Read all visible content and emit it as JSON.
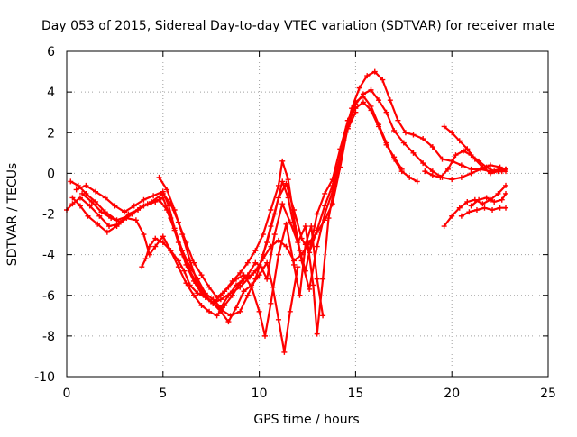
{
  "chart_data": {
    "type": "scatter",
    "title": "Day 053 of 2015, Sidereal Day-to-day VTEC variation (SDTVAR) for receiver mate",
    "xlabel": "GPS time / hours",
    "ylabel": "SDTVAR / TECUs",
    "xlim": [
      0,
      25
    ],
    "ylim": [
      -10,
      6
    ],
    "xticks": [
      0,
      5,
      10,
      15,
      20,
      25
    ],
    "yticks": [
      -10,
      -8,
      -6,
      -4,
      -2,
      0,
      2,
      4,
      6
    ],
    "xtick_labels": [
      "0",
      "5",
      "10",
      "15",
      "20",
      "25"
    ],
    "ytick_labels": [
      "-10",
      "-8",
      "-6",
      "-4",
      "-2",
      "0",
      "2",
      "4",
      "6"
    ],
    "grid": true,
    "marker": "+",
    "color": "#ff0000",
    "series": [
      {
        "x": [
          0.0,
          0.3,
          0.7,
          1.2,
          1.7,
          2.2,
          2.7,
          3.2,
          3.7,
          4.2,
          4.8,
          5.2,
          5.6,
          6.0,
          6.4,
          6.8,
          7.2,
          7.6,
          8.0,
          8.5,
          9.0,
          9.4,
          9.8,
          10.2,
          10.6,
          11.0,
          11.4,
          11.8,
          12.2,
          12.6,
          13.0,
          13.4,
          13.8,
          14.2,
          14.6,
          15.0,
          15.4,
          15.8,
          16.2,
          16.6,
          17.0,
          17.5,
          18.0,
          18.5,
          19.0,
          19.5,
          20.0,
          20.5,
          21.0,
          21.5,
          22.0,
          22.5,
          22.8
        ],
        "y": [
          -1.8,
          -1.5,
          -1.2,
          -1.6,
          -2.1,
          -2.6,
          -2.5,
          -2.0,
          -1.8,
          -1.5,
          -1.3,
          -1.8,
          -2.8,
          -4.0,
          -4.8,
          -5.5,
          -6.0,
          -6.4,
          -6.2,
          -5.9,
          -5.6,
          -5.2,
          -4.8,
          -4.2,
          -3.6,
          -3.3,
          -3.6,
          -4.3,
          -4.0,
          -3.4,
          -2.9,
          -2.3,
          -1.5,
          0.3,
          2.3,
          3.4,
          3.9,
          4.1,
          3.6,
          3.0,
          2.1,
          1.5,
          1.0,
          0.5,
          0.1,
          -0.2,
          -0.3,
          -0.2,
          0.0,
          0.2,
          0.4,
          0.3,
          0.2
        ]
      },
      {
        "x": [
          0.2,
          0.6,
          1.0,
          1.5,
          2.0,
          2.6,
          3.2,
          3.8,
          4.4,
          5.0,
          5.4,
          5.8,
          6.2,
          6.6,
          7.0,
          7.4,
          7.8,
          8.2,
          8.6,
          9.0,
          9.4,
          9.8,
          10.2,
          10.6,
          11.0,
          11.2,
          11.5,
          11.8,
          12.2,
          12.6,
          13.0,
          13.4,
          13.8,
          14.2,
          14.6,
          15.0,
          15.4,
          15.8,
          16.2,
          16.6,
          17.0,
          17.4,
          17.8,
          18.2
        ],
        "y": [
          -0.4,
          -0.6,
          -1.0,
          -1.4,
          -1.9,
          -2.3,
          -2.1,
          -1.7,
          -1.4,
          -1.0,
          -1.5,
          -2.4,
          -3.4,
          -4.4,
          -5.0,
          -5.6,
          -6.1,
          -5.8,
          -5.3,
          -4.9,
          -4.4,
          -3.8,
          -3.0,
          -1.8,
          -0.6,
          0.6,
          -0.3,
          -2.2,
          -4.3,
          -5.7,
          -3.6,
          -2.0,
          -0.9,
          0.8,
          2.6,
          3.5,
          3.8,
          3.3,
          2.4,
          1.5,
          0.7,
          0.1,
          -0.2,
          -0.4
        ]
      },
      {
        "x": [
          0.3,
          0.7,
          1.1,
          1.6,
          2.1,
          2.6,
          3.1,
          3.6,
          4.0,
          4.3,
          4.6,
          5.0,
          5.4,
          5.8,
          6.2,
          6.6,
          7.0,
          7.4,
          7.8,
          8.2,
          8.6,
          9.0,
          9.4,
          9.8,
          10.1,
          10.4,
          10.8,
          11.2,
          11.6,
          12.0,
          12.4,
          12.8,
          13.0,
          13.3,
          13.6,
          14.0,
          14.4,
          14.8,
          15.2,
          15.6,
          16.0,
          16.4,
          16.8,
          17.2,
          17.6,
          18.0,
          18.5,
          19.0,
          19.5,
          20.0,
          20.5,
          21.0,
          21.5,
          22.0,
          22.5,
          22.8
        ],
        "y": [
          -1.2,
          -1.6,
          -2.1,
          -2.5,
          -2.9,
          -2.6,
          -2.2,
          -2.3,
          -3.0,
          -4.0,
          -3.6,
          -3.1,
          -3.8,
          -4.6,
          -5.4,
          -6.0,
          -6.5,
          -6.8,
          -7.0,
          -6.5,
          -6.0,
          -5.4,
          -5.0,
          -4.4,
          -4.6,
          -5.2,
          -3.0,
          -1.5,
          -2.4,
          -3.4,
          -2.6,
          -5.5,
          -7.9,
          -5.2,
          -2.2,
          -0.2,
          1.6,
          3.2,
          4.2,
          4.8,
          5.0,
          4.6,
          3.6,
          2.6,
          2.0,
          1.9,
          1.7,
          1.3,
          0.7,
          0.6,
          0.4,
          0.2,
          0.2,
          0.1,
          0.2,
          0.2
        ]
      },
      {
        "x": [
          0.5,
          1.0,
          1.5,
          2.0,
          2.5,
          3.0,
          3.5,
          4.0,
          4.5,
          5.0,
          5.3,
          5.6,
          6.0,
          6.4,
          6.8,
          7.2,
          7.6,
          8.0,
          8.4,
          8.8,
          9.2,
          9.6,
          10.0,
          10.4,
          10.8,
          11.2,
          11.5,
          11.8,
          12.1,
          12.4,
          12.7,
          13.0,
          13.4,
          13.8,
          14.2,
          14.6,
          15.0,
          15.4,
          15.8,
          16.2,
          16.6,
          17.0,
          17.4
        ],
        "y": [
          -0.8,
          -0.6,
          -0.9,
          -1.2,
          -1.6,
          -1.9,
          -1.6,
          -1.3,
          -1.1,
          -0.9,
          -1.6,
          -2.7,
          -3.8,
          -4.6,
          -5.2,
          -5.9,
          -6.2,
          -6.6,
          -6.0,
          -5.5,
          -5.2,
          -5.0,
          -4.6,
          -3.4,
          -2.0,
          -0.4,
          -1.2,
          -2.6,
          -3.8,
          -4.8,
          -3.4,
          -2.0,
          -1.0,
          -0.3,
          1.2,
          2.6,
          3.2,
          3.5,
          3.1,
          2.3,
          1.4,
          0.8,
          0.2
        ]
      },
      {
        "x": [
          0.8,
          1.3,
          1.8,
          2.3,
          2.8,
          3.4,
          4.0,
          4.6,
          5.0,
          5.4,
          5.8,
          6.2,
          6.6,
          7.0,
          7.5,
          8.0,
          8.5,
          9.0,
          9.4,
          9.8,
          10.2,
          10.6,
          11.0,
          11.4,
          11.8,
          12.2,
          12.6,
          13.0,
          13.4,
          13.8,
          14.2,
          14.6,
          15.0
        ],
        "y": [
          -1.0,
          -1.4,
          -1.9,
          -2.2,
          -2.4,
          -2.0,
          -1.6,
          -1.4,
          -1.2,
          -2.2,
          -3.4,
          -4.5,
          -5.3,
          -5.9,
          -6.3,
          -6.7,
          -7.0,
          -6.8,
          -6.0,
          -5.2,
          -4.0,
          -2.6,
          -1.2,
          -0.5,
          -1.8,
          -3.2,
          -3.9,
          -2.8,
          -1.6,
          -0.6,
          0.8,
          2.2,
          3.0
        ]
      },
      {
        "x": [
          3.9,
          4.1,
          4.3,
          4.6,
          5.0,
          5.4,
          5.8,
          6.1,
          6.4,
          6.8,
          7.2,
          7.6,
          8.0,
          8.4,
          8.8,
          9.2,
          9.6,
          10.0,
          10.3,
          10.6,
          11.0,
          11.4,
          11.8,
          12.1,
          12.4,
          12.7,
          13.0,
          13.3
        ],
        "y": [
          -4.6,
          -4.2,
          -3.6,
          -3.2,
          -3.4,
          -3.8,
          -4.3,
          -4.8,
          -5.5,
          -5.9,
          -6.1,
          -6.4,
          -6.0,
          -5.6,
          -5.2,
          -5.0,
          -5.6,
          -6.8,
          -8.0,
          -6.4,
          -4.0,
          -2.5,
          -4.5,
          -6.0,
          -3.5,
          -2.6,
          -5.2,
          -7.0
        ]
      },
      {
        "x": [
          4.8,
          5.2,
          5.6,
          6.0,
          6.4,
          6.8,
          7.2,
          7.6,
          8.0,
          8.4,
          8.8,
          9.2,
          9.6,
          10.0,
          10.4,
          10.7,
          11.0,
          11.3,
          11.6,
          12.0
        ],
        "y": [
          -0.2,
          -0.8,
          -1.8,
          -3.0,
          -4.3,
          -5.4,
          -6.0,
          -6.4,
          -6.8,
          -7.3,
          -6.6,
          -5.8,
          -5.5,
          -5.0,
          -4.4,
          -5.6,
          -7.2,
          -8.8,
          -6.8,
          -4.6
        ]
      },
      {
        "x": [
          18.6,
          19.0,
          19.4,
          19.8,
          20.2,
          20.6,
          21.0,
          21.4,
          21.8,
          22.2,
          22.6,
          22.8
        ],
        "y": [
          0.1,
          -0.1,
          -0.2,
          0.2,
          0.9,
          1.1,
          0.9,
          0.6,
          0.3,
          0.1,
          0.1,
          0.2
        ]
      },
      {
        "x": [
          19.6,
          20.0,
          20.4,
          20.8,
          21.2,
          21.6,
          22.0,
          22.4,
          22.8
        ],
        "y": [
          2.3,
          2.0,
          1.6,
          1.2,
          0.7,
          0.3,
          0.0,
          0.1,
          0.1
        ]
      },
      {
        "x": [
          19.6,
          20.0,
          20.4,
          20.8,
          21.2,
          21.6,
          22.0,
          22.4,
          22.8
        ],
        "y": [
          -2.6,
          -2.1,
          -1.7,
          -1.4,
          -1.3,
          -1.5,
          -1.3,
          -1.0,
          -0.6
        ]
      },
      {
        "x": [
          20.5,
          20.9,
          21.3,
          21.7,
          22.1,
          22.5,
          22.8
        ],
        "y": [
          -2.1,
          -1.9,
          -1.8,
          -1.7,
          -1.8,
          -1.7,
          -1.7
        ]
      },
      {
        "x": [
          21.0,
          21.4,
          21.8,
          22.2,
          22.6,
          22.8
        ],
        "y": [
          -1.6,
          -1.3,
          -1.2,
          -1.4,
          -1.3,
          -1.0
        ]
      }
    ]
  }
}
